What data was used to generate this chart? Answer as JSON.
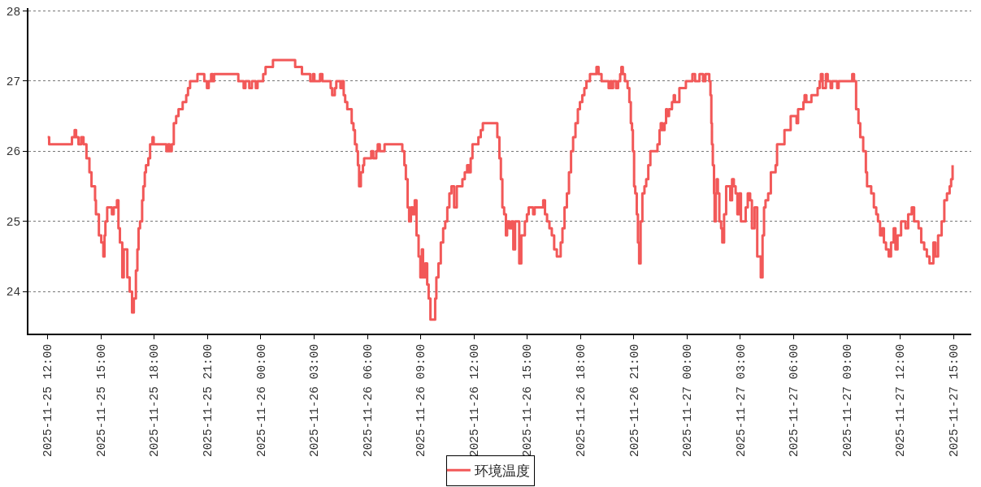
{
  "chart_data": {
    "type": "step",
    "x": [
      "2025-11-25T12:00",
      "2025-11-25T12:05",
      "2025-11-25T13:22",
      "2025-11-25T13:31",
      "2025-11-25T13:36",
      "2025-11-25T13:44",
      "2025-11-25T13:53",
      "2025-11-25T14:01",
      "2025-11-25T14:11",
      "2025-11-25T14:21",
      "2025-11-25T14:28",
      "2025-11-25T14:40",
      "2025-11-25T14:43",
      "2025-11-25T14:53",
      "2025-11-25T15:01",
      "2025-11-25T15:08",
      "2025-11-25T15:12",
      "2025-11-25T15:15",
      "2025-11-25T15:21",
      "2025-11-25T15:37",
      "2025-11-25T15:43",
      "2025-11-25T15:54",
      "2025-11-25T15:59",
      "2025-11-25T16:04",
      "2025-11-25T16:12",
      "2025-11-25T16:17",
      "2025-11-25T16:29",
      "2025-11-25T16:37",
      "2025-11-25T16:45",
      "2025-11-25T16:51",
      "2025-11-25T16:58",
      "2025-11-25T17:03",
      "2025-11-25T17:07",
      "2025-11-25T17:12",
      "2025-11-25T17:19",
      "2025-11-25T17:23",
      "2025-11-25T17:28",
      "2025-11-25T17:32",
      "2025-11-25T17:40",
      "2025-11-25T17:46",
      "2025-11-25T17:54",
      "2025-11-25T17:58",
      "2025-11-25T18:41",
      "2025-11-25T18:47",
      "2025-11-25T18:52",
      "2025-11-25T18:59",
      "2025-11-25T19:06",
      "2025-11-25T19:14",
      "2025-11-25T19:22",
      "2025-11-25T19:36",
      "2025-11-25T19:48",
      "2025-11-25T19:54",
      "2025-11-25T20:01",
      "2025-11-25T20:26",
      "2025-11-25T20:49",
      "2025-11-25T20:58",
      "2025-11-25T21:04",
      "2025-11-25T21:12",
      "2025-11-25T21:18",
      "2025-11-25T21:22",
      "2025-11-25T22:44",
      "2025-11-25T23:02",
      "2025-11-25T23:08",
      "2025-11-25T23:21",
      "2025-11-25T23:30",
      "2025-11-25T23:43",
      "2025-11-25T23:49",
      "2025-11-26T00:08",
      "2025-11-26T00:16",
      "2025-11-26T00:41",
      "2025-11-26T01:56",
      "2025-11-26T02:19",
      "2025-11-26T02:47",
      "2025-11-26T02:56",
      "2025-11-26T03:01",
      "2025-11-26T03:20",
      "2025-11-26T03:28",
      "2025-11-26T03:56",
      "2025-11-26T04:01",
      "2025-11-26T04:10",
      "2025-11-26T04:15",
      "2025-11-26T04:29",
      "2025-11-26T04:33",
      "2025-11-26T04:40",
      "2025-11-26T04:45",
      "2025-11-26T04:52",
      "2025-11-26T05:07",
      "2025-11-26T05:13",
      "2025-11-26T05:18",
      "2025-11-26T05:24",
      "2025-11-26T05:28",
      "2025-11-26T05:32",
      "2025-11-26T05:38",
      "2025-11-26T05:45",
      "2025-11-26T05:49",
      "2025-11-26T06:13",
      "2025-11-26T06:20",
      "2025-11-26T06:30",
      "2025-11-26T06:35",
      "2025-11-26T06:42",
      "2025-11-26T06:58",
      "2025-11-26T07:58",
      "2025-11-26T08:05",
      "2025-11-26T08:10",
      "2025-11-26T08:16",
      "2025-11-26T08:21",
      "2025-11-26T08:27",
      "2025-11-26T08:34",
      "2025-11-26T08:40",
      "2025-11-26T08:46",
      "2025-11-26T08:53",
      "2025-11-26T08:59",
      "2025-11-26T09:04",
      "2025-11-26T09:08",
      "2025-11-26T09:15",
      "2025-11-26T09:22",
      "2025-11-26T09:27",
      "2025-11-26T09:33",
      "2025-11-26T09:49",
      "2025-11-26T09:53",
      "2025-11-26T10:00",
      "2025-11-26T10:08",
      "2025-11-26T10:16",
      "2025-11-26T10:23",
      "2025-11-26T10:30",
      "2025-11-26T10:37",
      "2025-11-26T10:44",
      "2025-11-26T10:53",
      "2025-11-26T11:02",
      "2025-11-26T11:21",
      "2025-11-26T11:29",
      "2025-11-26T11:37",
      "2025-11-26T11:43",
      "2025-11-26T11:49",
      "2025-11-26T11:55",
      "2025-11-26T12:15",
      "2025-11-26T12:23",
      "2025-11-26T12:30",
      "2025-11-26T13:19",
      "2025-11-26T13:26",
      "2025-11-26T13:31",
      "2025-11-26T13:36",
      "2025-11-26T13:42",
      "2025-11-26T13:48",
      "2025-11-26T13:52",
      "2025-11-26T14:00",
      "2025-11-26T14:07",
      "2025-11-26T14:13",
      "2025-11-26T14:19",
      "2025-11-26T14:33",
      "2025-11-26T14:40",
      "2025-11-26T14:52",
      "2025-11-26T14:59",
      "2025-11-26T15:05",
      "2025-11-26T15:20",
      "2025-11-26T15:25",
      "2025-11-26T15:54",
      "2025-11-26T16:00",
      "2025-11-26T16:07",
      "2025-11-26T16:15",
      "2025-11-26T16:23",
      "2025-11-26T16:31",
      "2025-11-26T16:40",
      "2025-11-26T16:53",
      "2025-11-26T16:59",
      "2025-11-26T17:06",
      "2025-11-26T17:14",
      "2025-11-26T17:21",
      "2025-11-26T17:28",
      "2025-11-26T17:35",
      "2025-11-26T17:43",
      "2025-11-26T17:51",
      "2025-11-26T17:58",
      "2025-11-26T18:06",
      "2025-11-26T18:13",
      "2025-11-26T18:20",
      "2025-11-26T18:32",
      "2025-11-26T18:54",
      "2025-11-26T19:01",
      "2025-11-26T19:11",
      "2025-11-26T19:35",
      "2025-11-26T19:41",
      "2025-11-26T19:45",
      "2025-11-26T19:50",
      "2025-11-26T20:00",
      "2025-11-26T20:07",
      "2025-11-26T20:14",
      "2025-11-26T20:18",
      "2025-11-26T20:23",
      "2025-11-26T20:30",
      "2025-11-26T20:39",
      "2025-11-26T20:45",
      "2025-11-26T20:50",
      "2025-11-26T20:54",
      "2025-11-26T20:57",
      "2025-11-26T21:01",
      "2025-11-26T21:05",
      "2025-11-26T21:10",
      "2025-11-26T21:14",
      "2025-11-26T21:18",
      "2025-11-26T21:23",
      "2025-11-26T21:29",
      "2025-11-26T21:36",
      "2025-11-26T21:42",
      "2025-11-26T21:49",
      "2025-11-26T21:56",
      "2025-11-26T22:20",
      "2025-11-26T22:27",
      "2025-11-26T22:31",
      "2025-11-26T22:37",
      "2025-11-26T22:44",
      "2025-11-26T22:49",
      "2025-11-26T22:53",
      "2025-11-26T22:59",
      "2025-11-26T23:09",
      "2025-11-26T23:15",
      "2025-11-26T23:19",
      "2025-11-26T23:34",
      "2025-11-26T23:56",
      "2025-11-27T00:18",
      "2025-11-27T00:27",
      "2025-11-27T00:42",
      "2025-11-27T00:54",
      "2025-11-27T01:02",
      "2025-11-27T01:15",
      "2025-11-27T01:19",
      "2025-11-27T01:22",
      "2025-11-27T01:24",
      "2025-11-27T01:27",
      "2025-11-27T01:31",
      "2025-11-27T01:33",
      "2025-11-27T01:37",
      "2025-11-27T01:40",
      "2025-11-27T01:44",
      "2025-11-27T01:49",
      "2025-11-27T01:55",
      "2025-11-27T01:59",
      "2025-11-27T02:05",
      "2025-11-27T02:12",
      "2025-11-27T02:26",
      "2025-11-27T02:32",
      "2025-11-27T02:38",
      "2025-11-27T02:44",
      "2025-11-27T02:50",
      "2025-11-27T02:56",
      "2025-11-27T03:02",
      "2025-11-27T03:18",
      "2025-11-27T03:25",
      "2025-11-27T03:33",
      "2025-11-27T03:39",
      "2025-11-27T03:48",
      "2025-11-27T03:57",
      "2025-11-27T04:09",
      "2025-11-27T04:15",
      "2025-11-27T04:20",
      "2025-11-27T04:25",
      "2025-11-27T04:34",
      "2025-11-27T04:43",
      "2025-11-27T04:59",
      "2025-11-27T05:04",
      "2025-11-27T05:29",
      "2025-11-27T05:50",
      "2025-11-27T06:10",
      "2025-11-27T06:15",
      "2025-11-27T06:33",
      "2025-11-27T06:37",
      "2025-11-27T06:43",
      "2025-11-27T07:00",
      "2025-11-27T07:21",
      "2025-11-27T07:28",
      "2025-11-27T07:32",
      "2025-11-27T07:38",
      "2025-11-27T07:49",
      "2025-11-27T07:55",
      "2025-11-27T08:05",
      "2025-11-27T08:10",
      "2025-11-27T08:27",
      "2025-11-27T08:32",
      "2025-11-27T09:18",
      "2025-11-27T09:24",
      "2025-11-27T09:31",
      "2025-11-27T09:39",
      "2025-11-27T09:45",
      "2025-11-27T09:55",
      "2025-11-27T10:04",
      "2025-11-27T10:08",
      "2025-11-27T10:22",
      "2025-11-27T10:31",
      "2025-11-27T10:39",
      "2025-11-27T10:45",
      "2025-11-27T10:52",
      "2025-11-27T10:59",
      "2025-11-27T11:05",
      "2025-11-27T11:12",
      "2025-11-27T11:21",
      "2025-11-27T11:29",
      "2025-11-27T11:38",
      "2025-11-27T11:44",
      "2025-11-27T11:51",
      "2025-11-27T12:03",
      "2025-11-27T12:18",
      "2025-11-27T12:27",
      "2025-11-27T12:39",
      "2025-11-27T12:47",
      "2025-11-27T13:02",
      "2025-11-27T13:11",
      "2025-11-27T13:21",
      "2025-11-27T13:30",
      "2025-11-27T13:39",
      "2025-11-27T13:52",
      "2025-11-27T13:59",
      "2025-11-27T14:08",
      "2025-11-27T14:20",
      "2025-11-27T14:29",
      "2025-11-27T14:38",
      "2025-11-27T14:47",
      "2025-11-27T14:52",
      "2025-11-27T14:57"
    ],
    "series": [
      {
        "name": "环境温度",
        "color": "#f25858",
        "values": [
          26.2,
          26.1,
          26.2,
          26.3,
          26.2,
          26.1,
          26.2,
          26.1,
          25.9,
          25.7,
          25.5,
          25.3,
          25.1,
          24.8,
          24.7,
          24.5,
          24.8,
          25.0,
          25.2,
          25.1,
          25.2,
          25.3,
          24.9,
          24.7,
          24.2,
          24.6,
          24.2,
          24.0,
          23.7,
          23.9,
          24.3,
          24.6,
          24.9,
          25.0,
          25.3,
          25.5,
          25.7,
          25.8,
          25.9,
          26.1,
          26.2,
          26.1,
          26.0,
          26.1,
          26.0,
          26.1,
          26.4,
          26.5,
          26.6,
          26.7,
          26.8,
          26.9,
          27.0,
          27.1,
          27.0,
          26.9,
          27.0,
          27.1,
          27.0,
          27.1,
          27.0,
          26.9,
          27.0,
          26.9,
          27.0,
          26.9,
          27.0,
          27.1,
          27.2,
          27.3,
          27.2,
          27.1,
          27.0,
          27.1,
          27.0,
          27.1,
          27.0,
          26.9,
          26.8,
          26.9,
          27.0,
          26.9,
          27.0,
          26.8,
          26.7,
          26.6,
          26.4,
          26.3,
          26.1,
          26.0,
          25.8,
          25.5,
          25.7,
          25.8,
          25.9,
          26.0,
          25.9,
          26.0,
          26.1,
          26.0,
          26.1,
          26.0,
          25.8,
          25.6,
          25.2,
          25.0,
          25.2,
          25.1,
          25.3,
          24.8,
          24.5,
          24.2,
          24.6,
          24.2,
          24.4,
          24.1,
          23.9,
          23.6,
          23.9,
          24.2,
          24.4,
          24.7,
          24.9,
          25.0,
          25.2,
          25.4,
          25.5,
          25.2,
          25.5,
          25.6,
          25.7,
          25.8,
          25.7,
          25.9,
          26.1,
          26.2,
          26.3,
          26.4,
          26.2,
          25.9,
          25.6,
          25.2,
          25.1,
          24.8,
          25.0,
          24.9,
          25.0,
          24.6,
          25.0,
          24.4,
          24.8,
          25.0,
          25.1,
          25.2,
          25.1,
          25.2,
          25.3,
          25.1,
          25.0,
          24.9,
          24.8,
          24.6,
          24.5,
          24.7,
          24.9,
          25.2,
          25.4,
          25.7,
          26.0,
          26.2,
          26.4,
          26.6,
          26.7,
          26.8,
          26.9,
          27.0,
          27.1,
          27.2,
          27.1,
          27.0,
          26.9,
          27.0,
          26.9,
          27.0,
          26.9,
          27.0,
          27.1,
          27.2,
          27.1,
          27.0,
          26.9,
          26.7,
          26.4,
          26.3,
          26.0,
          25.5,
          25.4,
          25.1,
          24.7,
          24.4,
          25.0,
          25.4,
          25.5,
          25.6,
          25.8,
          26.0,
          26.1,
          26.3,
          26.4,
          26.3,
          26.4,
          26.6,
          26.5,
          26.6,
          26.7,
          26.8,
          26.7,
          26.9,
          27.0,
          27.1,
          27.0,
          27.1,
          27.0,
          27.1,
          27.0,
          26.8,
          26.4,
          26.1,
          25.8,
          25.4,
          25.0,
          25.4,
          25.6,
          25.4,
          25.0,
          24.9,
          24.7,
          25.1,
          25.5,
          25.3,
          25.6,
          25.5,
          25.4,
          25.1,
          25.4,
          25.0,
          25.2,
          25.4,
          25.3,
          24.9,
          25.2,
          24.5,
          24.2,
          24.8,
          25.2,
          25.3,
          25.4,
          25.7,
          25.8,
          26.1,
          26.3,
          26.5,
          26.4,
          26.6,
          26.7,
          26.8,
          26.7,
          26.8,
          26.9,
          27.0,
          27.1,
          26.9,
          27.1,
          27.0,
          26.9,
          27.0,
          26.9,
          27.0,
          27.1,
          27.0,
          26.6,
          26.4,
          26.2,
          26.0,
          25.7,
          25.5,
          25.4,
          25.2,
          25.1,
          25.0,
          24.8,
          24.9,
          24.7,
          24.6,
          24.5,
          24.7,
          24.9,
          24.6,
          24.8,
          25.0,
          24.9,
          25.1,
          25.2,
          25.0,
          24.9,
          24.7,
          24.6,
          24.5,
          24.4,
          24.7,
          24.5,
          24.8,
          25.0,
          25.3,
          25.4,
          25.5,
          25.6,
          25.8
        ]
      }
    ],
    "xlim": [
      "2025-11-25T10:55",
      "2025-11-27T16:00"
    ],
    "xticks": [
      {
        "value": "2025-11-25T12:00",
        "label": "2025-11-25 12:00"
      },
      {
        "value": "2025-11-25T15:00",
        "label": "2025-11-25 15:00"
      },
      {
        "value": "2025-11-25T18:00",
        "label": "2025-11-25 18:00"
      },
      {
        "value": "2025-11-25T21:00",
        "label": "2025-11-25 21:00"
      },
      {
        "value": "2025-11-26T00:00",
        "label": "2025-11-26 00:00"
      },
      {
        "value": "2025-11-26T03:00",
        "label": "2025-11-26 03:00"
      },
      {
        "value": "2025-11-26T06:00",
        "label": "2025-11-26 06:00"
      },
      {
        "value": "2025-11-26T09:00",
        "label": "2025-11-26 09:00"
      },
      {
        "value": "2025-11-26T12:00",
        "label": "2025-11-26 12:00"
      },
      {
        "value": "2025-11-26T15:00",
        "label": "2025-11-26 15:00"
      },
      {
        "value": "2025-11-26T18:00",
        "label": "2025-11-26 18:00"
      },
      {
        "value": "2025-11-26T21:00",
        "label": "2025-11-26 21:00"
      },
      {
        "value": "2025-11-27T00:00",
        "label": "2025-11-27 00:00"
      },
      {
        "value": "2025-11-27T03:00",
        "label": "2025-11-27 03:00"
      },
      {
        "value": "2025-11-27T06:00",
        "label": "2025-11-27 06:00"
      },
      {
        "value": "2025-11-27T09:00",
        "label": "2025-11-27 09:00"
      },
      {
        "value": "2025-11-27T12:00",
        "label": "2025-11-27 12:00"
      },
      {
        "value": "2025-11-27T15:00",
        "label": "2025-11-27 15:00"
      }
    ],
    "ylim": [
      23.4,
      28.04
    ],
    "yticks": [
      24,
      25,
      26,
      27,
      28
    ],
    "grid": "y",
    "legend": "bottom"
  }
}
